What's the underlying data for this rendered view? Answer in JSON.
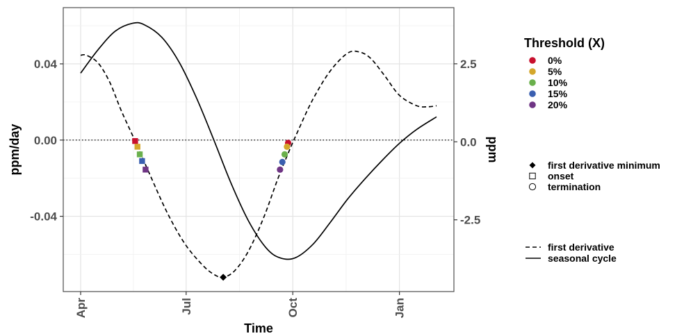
{
  "chart_data": {
    "type": "line",
    "xlabel": "Time",
    "ylabel_left": "ppm/day",
    "ylabel_right": "ppm",
    "x_ticks": [
      {
        "label": "Apr",
        "day": 0
      },
      {
        "label": "Jul",
        "day": 91
      },
      {
        "label": "Oct",
        "day": 183
      },
      {
        "label": "Jan",
        "day": 275
      }
    ],
    "xlim": [
      -15,
      322
    ],
    "left_ylim": [
      -0.0795,
      0.0695
    ],
    "left_ticks": [
      {
        "label": "0.04",
        "value": 0.04
      },
      {
        "label": "0.00",
        "value": 0.0
      },
      {
        "label": "-0.04",
        "value": -0.04
      }
    ],
    "right_ylim": [
      -4.8,
      4.3
    ],
    "right_ticks": [
      {
        "label": "2.5",
        "value": 2.5
      },
      {
        "label": "0.0",
        "value": 0.0
      },
      {
        "label": "-2.5",
        "value": -2.5
      }
    ],
    "grid": true,
    "zero_line": "dotted",
    "series": [
      {
        "name": "seasonal cycle",
        "axis": "right",
        "style": "solid",
        "points": [
          [
            0,
            2.2
          ],
          [
            15,
            2.95
          ],
          [
            30,
            3.55
          ],
          [
            45,
            3.8
          ],
          [
            55,
            3.75
          ],
          [
            70,
            3.35
          ],
          [
            85,
            2.55
          ],
          [
            100,
            1.4
          ],
          [
            115,
            0.05
          ],
          [
            130,
            -1.35
          ],
          [
            145,
            -2.55
          ],
          [
            160,
            -3.4
          ],
          [
            172,
            -3.72
          ],
          [
            185,
            -3.72
          ],
          [
            200,
            -3.3
          ],
          [
            215,
            -2.6
          ],
          [
            230,
            -1.85
          ],
          [
            245,
            -1.2
          ],
          [
            260,
            -0.6
          ],
          [
            275,
            -0.05
          ],
          [
            290,
            0.4
          ],
          [
            307,
            0.8
          ]
        ]
      },
      {
        "name": "first derivative",
        "axis": "left",
        "style": "dashed",
        "points": [
          [
            0,
            0.0445
          ],
          [
            5,
            0.0445
          ],
          [
            15,
            0.0405
          ],
          [
            25,
            0.0305
          ],
          [
            35,
            0.0155
          ],
          [
            47,
            -0.0005
          ],
          [
            60,
            -0.0185
          ],
          [
            75,
            -0.0385
          ],
          [
            90,
            -0.0545
          ],
          [
            105,
            -0.0655
          ],
          [
            115,
            -0.0705
          ],
          [
            123,
            -0.072
          ],
          [
            133,
            -0.0685
          ],
          [
            145,
            -0.058
          ],
          [
            158,
            -0.0405
          ],
          [
            170,
            -0.0205
          ],
          [
            180,
            -0.0055
          ],
          [
            188,
            0.0055
          ],
          [
            200,
            0.021
          ],
          [
            215,
            0.036
          ],
          [
            230,
            0.0455
          ],
          [
            240,
            0.0463
          ],
          [
            250,
            0.043
          ],
          [
            262,
            0.034
          ],
          [
            275,
            0.0235
          ],
          [
            290,
            0.018
          ],
          [
            300,
            0.0175
          ],
          [
            307,
            0.018
          ]
        ]
      }
    ],
    "threshold_legend_title": "Threshold (X)",
    "thresholds": [
      {
        "label": "0%",
        "color": "#c8102e"
      },
      {
        "label": "5%",
        "color": "#d4a72c"
      },
      {
        "label": "10%",
        "color": "#6ab04c"
      },
      {
        "label": "15%",
        "color": "#3a5fb0"
      },
      {
        "label": "20%",
        "color": "#6f3584"
      }
    ],
    "onset_markers": [
      {
        "day": 47,
        "value": -0.0005,
        "threshold": 0
      },
      {
        "day": 49,
        "value": -0.0035,
        "threshold": 1
      },
      {
        "day": 51,
        "value": -0.0075,
        "threshold": 2
      },
      {
        "day": 53,
        "value": -0.011,
        "threshold": 3
      },
      {
        "day": 56,
        "value": -0.0155,
        "threshold": 4
      }
    ],
    "termination_markers": [
      {
        "day": 179,
        "value": -0.0015,
        "threshold": 0
      },
      {
        "day": 178,
        "value": -0.0035,
        "threshold": 1
      },
      {
        "day": 176,
        "value": -0.0075,
        "threshold": 2
      },
      {
        "day": 174,
        "value": -0.0115,
        "threshold": 3
      },
      {
        "day": 172,
        "value": -0.0155,
        "threshold": 4
      }
    ],
    "minimum_marker": {
      "day": 123,
      "value": -0.072
    },
    "shape_legend": [
      {
        "shape": "diamond",
        "label": "first derivative minimum"
      },
      {
        "shape": "square",
        "label": "onset"
      },
      {
        "shape": "circle",
        "label": "termination"
      }
    ],
    "line_legend": [
      {
        "style": "dashed",
        "label": "first derivative"
      },
      {
        "style": "solid",
        "label": "seasonal cycle"
      }
    ]
  }
}
